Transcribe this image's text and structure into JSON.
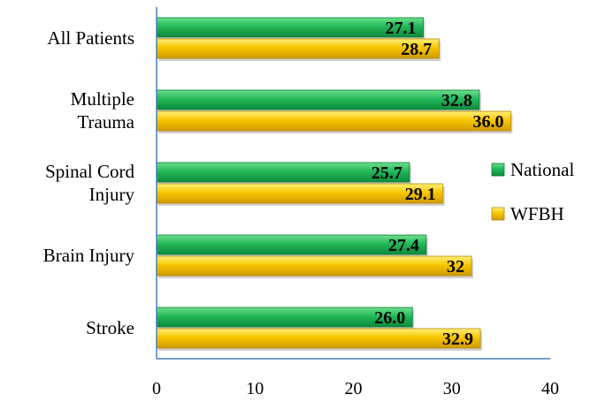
{
  "chart_data": {
    "type": "bar",
    "orientation": "horizontal",
    "title": "",
    "xlabel": "",
    "ylabel": "",
    "xlim": [
      0,
      40
    ],
    "x_ticks": [
      "0",
      "10",
      "20",
      "30",
      "40"
    ],
    "grid": false,
    "legend_position": "right",
    "categories": [
      {
        "lines": [
          "All Patients"
        ]
      },
      {
        "lines": [
          "Multiple",
          "Trauma"
        ]
      },
      {
        "lines": [
          "Spinal Cord",
          "Injury"
        ]
      },
      {
        "lines": [
          "Brain Injury"
        ]
      },
      {
        "lines": [
          "Stroke"
        ]
      }
    ],
    "series": [
      {
        "name": "National",
        "color": "#1db954",
        "values": [
          27.1,
          32.8,
          25.7,
          27.4,
          26.0
        ],
        "labels": [
          "27.1",
          "32.8",
          "25.7",
          "27.4",
          "26.0"
        ]
      },
      {
        "name": "WFBH",
        "color": "#f5c400",
        "values": [
          28.7,
          36.0,
          29.1,
          32,
          32.9
        ],
        "labels": [
          "28.7",
          "36.0",
          "29.1",
          "32",
          "32.9"
        ]
      }
    ]
  }
}
